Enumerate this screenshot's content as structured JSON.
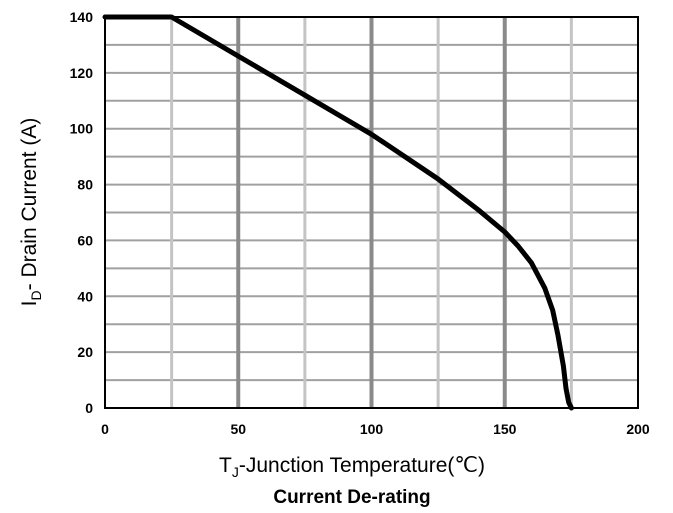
{
  "chart_data": {
    "type": "line",
    "title": "Current De-rating",
    "xlabel": {
      "main": "T",
      "sub": "J",
      "rest": "-Junction Temperature(℃)"
    },
    "ylabel": {
      "main": "I",
      "sub": "D",
      "rest": "- Drain Current (A)"
    },
    "xlim": [
      0,
      200
    ],
    "ylim": [
      0,
      140
    ],
    "xticks": [
      0,
      50,
      100,
      150,
      200
    ],
    "yticks": [
      0,
      20,
      40,
      60,
      80,
      100,
      120,
      140
    ],
    "grid": true,
    "series": [
      {
        "x": [
          0,
          25,
          50,
          75,
          100,
          125,
          140,
          150,
          155,
          160,
          165,
          168,
          170,
          172,
          173,
          174,
          175
        ],
        "y": [
          140,
          140,
          126,
          112,
          98,
          82,
          71,
          63,
          58,
          52,
          43,
          35,
          26,
          15,
          7,
          2,
          0
        ]
      }
    ]
  }
}
